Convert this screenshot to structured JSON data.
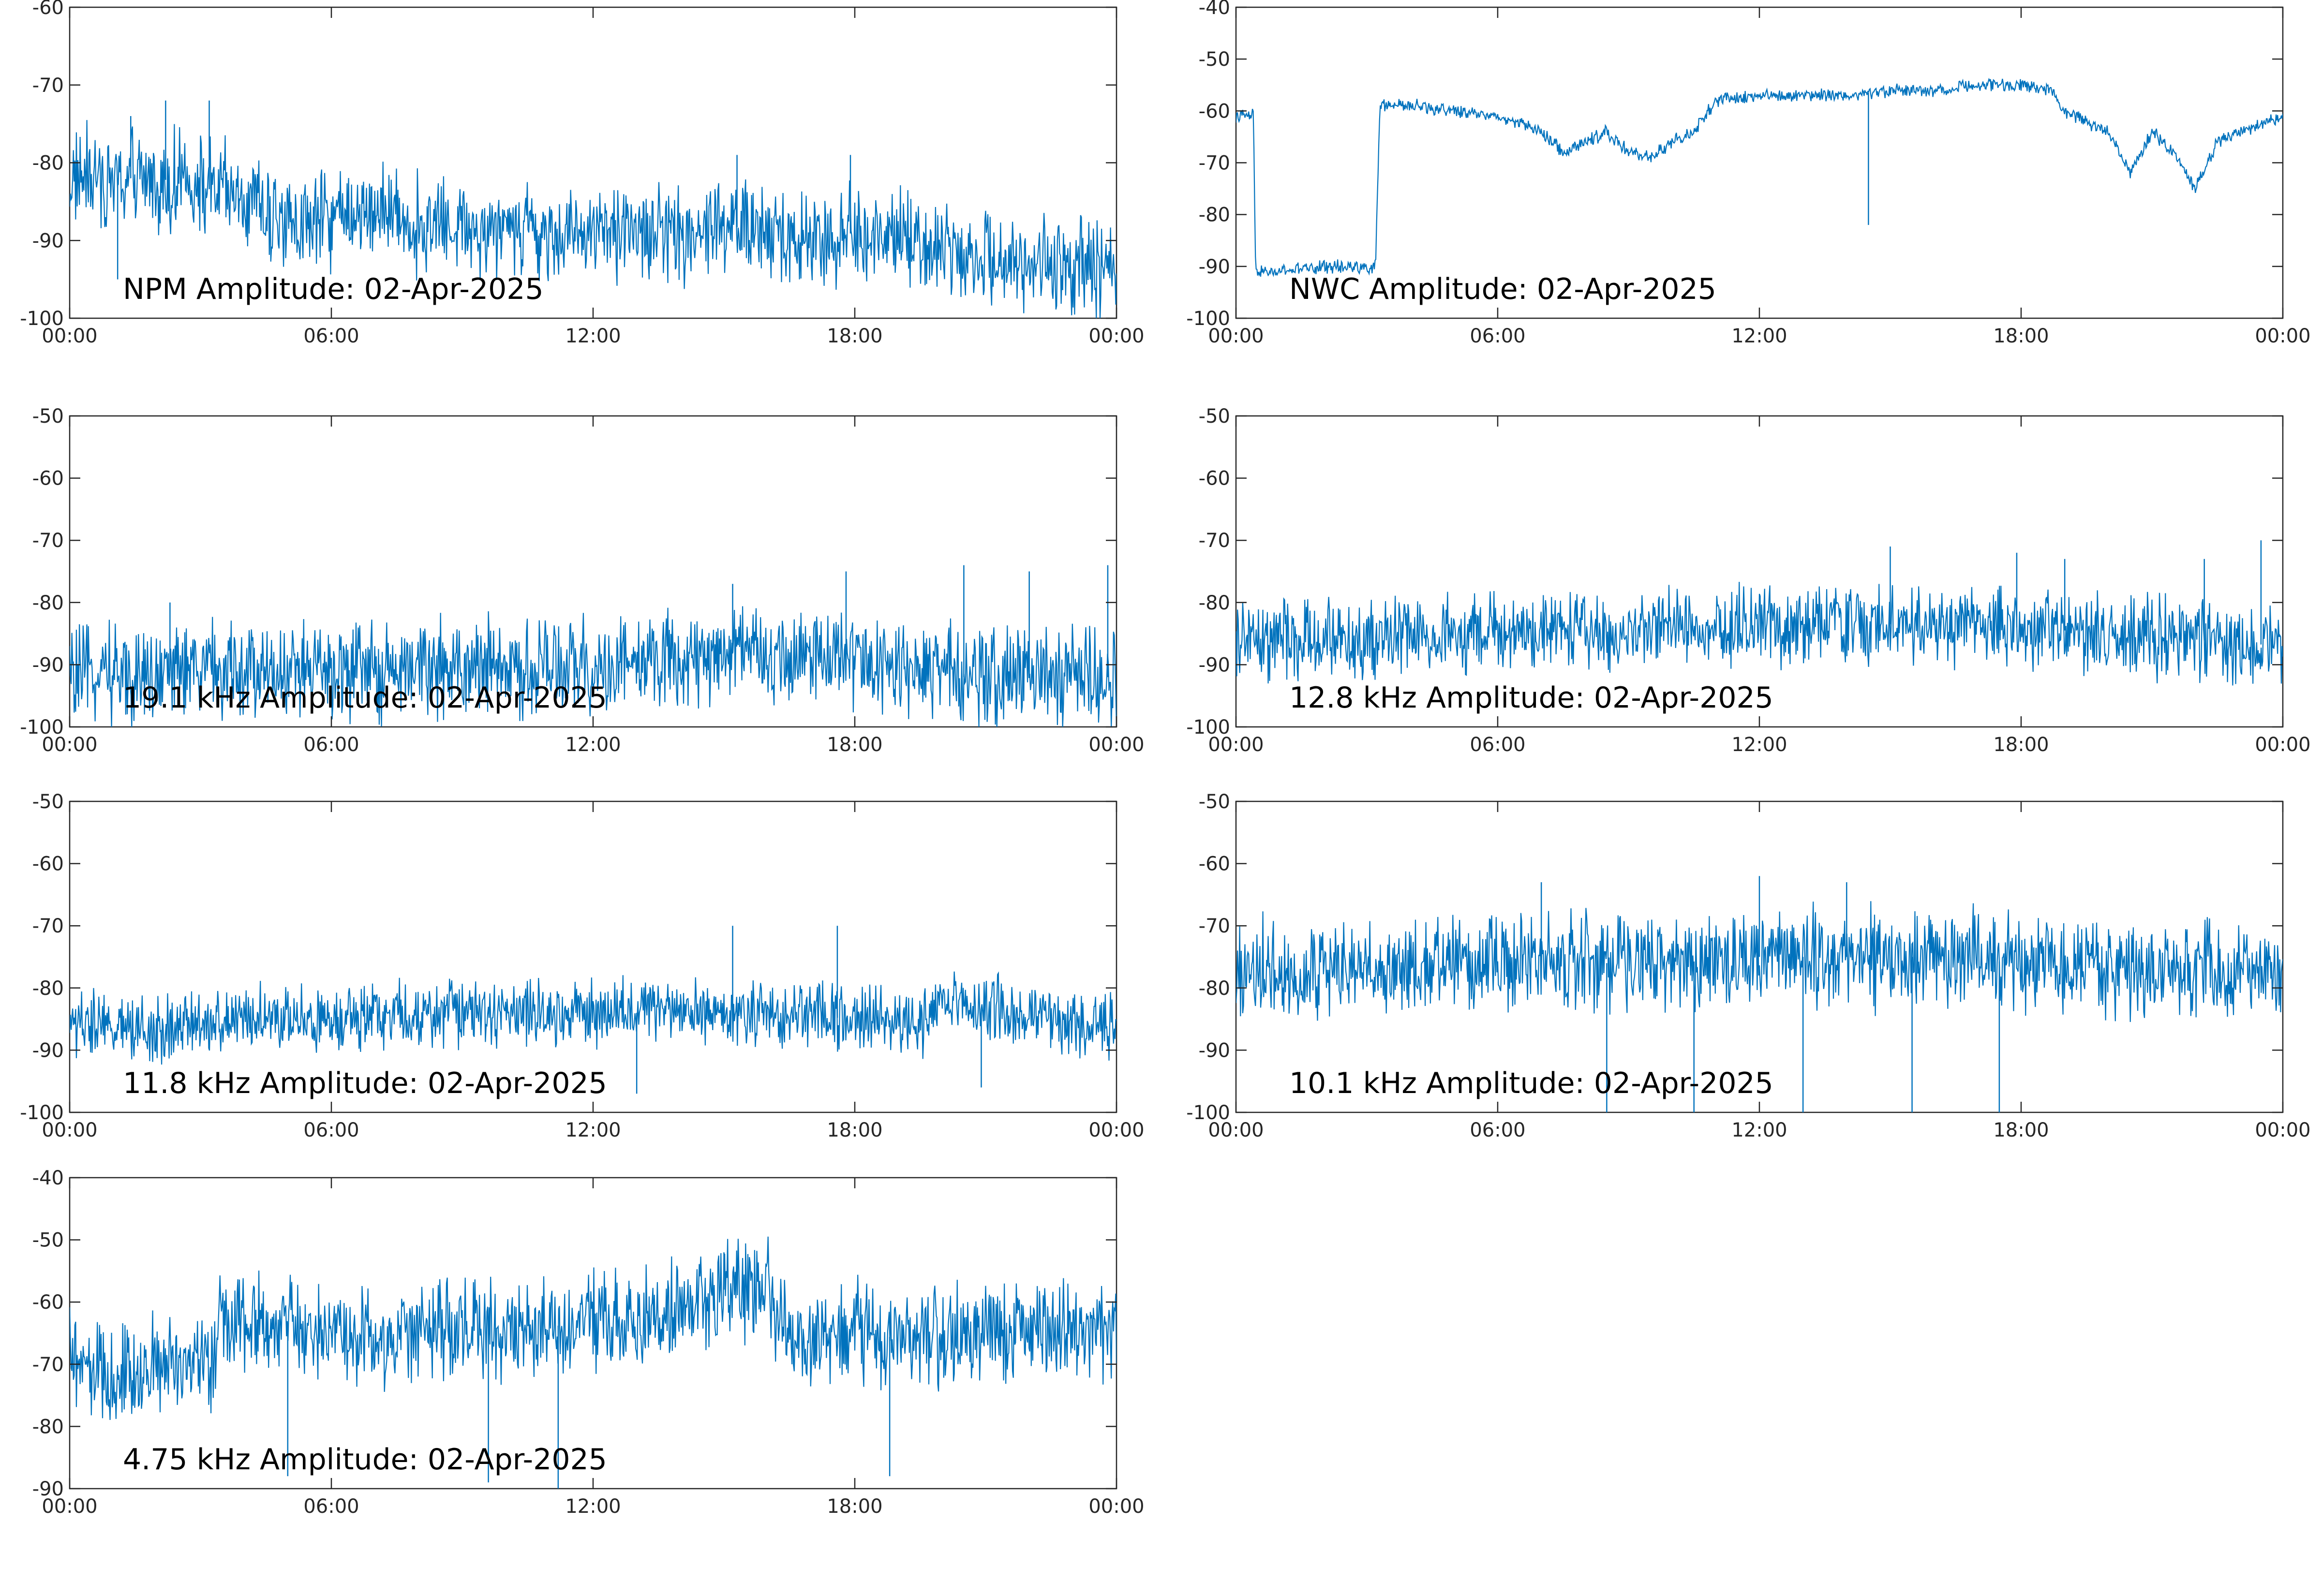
{
  "figure": {
    "background": "#ffffff",
    "line_color": "#0072BD"
  },
  "chart_data": [
    {
      "type": "line",
      "title": "NPM Amplitude: 02-Apr-2025",
      "xlabel": "",
      "ylabel": "",
      "xlim": [
        "00:00",
        "00:00"
      ],
      "ylim": [
        -100,
        -60
      ],
      "x_ticks": [
        "00:00",
        "06:00",
        "12:00",
        "18:00",
        "00:00"
      ],
      "y_ticks": [
        -60,
        -70,
        -80,
        -90,
        -100
      ],
      "grid": false,
      "series": [
        {
          "x_hours": [
            0,
            1,
            2,
            3,
            4,
            5,
            6,
            7,
            8,
            9,
            10,
            11,
            12,
            13,
            14,
            15,
            16,
            17,
            18,
            19,
            20,
            21,
            22,
            23,
            24
          ],
          "values": [
            -82,
            -82,
            -82,
            -83,
            -85,
            -88,
            -87,
            -86,
            -88,
            -88,
            -88,
            -89,
            -89,
            -89,
            -89,
            -88,
            -89,
            -90,
            -89,
            -90,
            -91,
            -92,
            -93,
            -93,
            -94
          ],
          "noise": 4,
          "spikes": [
            {
              "x_hours": 1.1,
              "value": -95
            },
            {
              "x_hours": 1.4,
              "value": -74
            },
            {
              "x_hours": 2.2,
              "value": -72
            },
            {
              "x_hours": 3.2,
              "value": -72
            },
            {
              "x_hours": 15.3,
              "value": -79
            },
            {
              "x_hours": 17.9,
              "value": -79
            }
          ]
        }
      ]
    },
    {
      "type": "line",
      "title": "NWC Amplitude: 02-Apr-2025",
      "xlabel": "",
      "ylabel": "",
      "xlim": [
        "00:00",
        "00:00"
      ],
      "ylim": [
        -100,
        -40
      ],
      "x_ticks": [
        "00:00",
        "06:00",
        "12:00",
        "18:00",
        "00:00"
      ],
      "y_ticks": [
        -40,
        -50,
        -60,
        -70,
        -80,
        -90,
        -100
      ],
      "grid": false,
      "series": [
        {
          "x_hours": [
            0,
            0.4,
            0.45,
            1,
            2,
            3,
            3.2,
            3.3,
            4,
            5,
            6,
            7,
            7.5,
            8,
            8.5,
            9,
            9.5,
            10,
            10.5,
            11,
            12,
            13,
            14,
            15,
            16,
            17,
            18,
            18.7,
            19,
            20,
            20.5,
            21,
            21.5,
            22,
            22.5,
            23,
            24
          ],
          "values": [
            -61,
            -61,
            -91,
            -91,
            -90,
            -90,
            -90,
            -59,
            -59,
            -60,
            -61,
            -64,
            -68,
            -66,
            -64,
            -68,
            -69,
            -66,
            -64,
            -58,
            -57,
            -57,
            -57,
            -56,
            -56,
            -55,
            -55,
            -56,
            -60,
            -64,
            -72,
            -64,
            -68,
            -75,
            -66,
            -64,
            -61
          ],
          "noise": 0.8,
          "spikes": [
            {
              "x_hours": 14.5,
              "value": -82
            }
          ]
        }
      ]
    },
    {
      "type": "line",
      "title": "19.1 kHz Amplitude: 02-Apr-2025",
      "xlabel": "",
      "ylabel": "",
      "xlim": [
        "00:00",
        "00:00"
      ],
      "ylim": [
        -100,
        -50
      ],
      "x_ticks": [
        "00:00",
        "06:00",
        "12:00",
        "18:00",
        "00:00"
      ],
      "y_ticks": [
        -50,
        -60,
        -70,
        -80,
        -90,
        -100
      ],
      "grid": false,
      "series": [
        {
          "x_hours": [
            0,
            2,
            4,
            6,
            8,
            10,
            12,
            14,
            15,
            16,
            17,
            18,
            19,
            20,
            22,
            24
          ],
          "values": [
            -92,
            -91,
            -91,
            -91,
            -91,
            -90,
            -90,
            -89,
            -88,
            -89,
            -88,
            -89,
            -90,
            -92,
            -92,
            -92
          ],
          "noise": 5,
          "spikes": [
            {
              "x_hours": 2.3,
              "value": -80
            },
            {
              "x_hours": 15.2,
              "value": -77
            },
            {
              "x_hours": 17.8,
              "value": -75
            },
            {
              "x_hours": 20.5,
              "value": -74
            },
            {
              "x_hours": 22.0,
              "value": -75
            },
            {
              "x_hours": 23.8,
              "value": -74
            }
          ]
        }
      ]
    },
    {
      "type": "line",
      "title": "12.8 kHz Amplitude: 02-Apr-2025",
      "xlabel": "",
      "ylabel": "",
      "xlim": [
        "00:00",
        "00:00"
      ],
      "ylim": [
        -100,
        -50
      ],
      "x_ticks": [
        "00:00",
        "06:00",
        "12:00",
        "18:00",
        "00:00"
      ],
      "y_ticks": [
        -50,
        -60,
        -70,
        -80,
        -90,
        -100
      ],
      "grid": false,
      "series": [
        {
          "x_hours": [
            0,
            2,
            4,
            6,
            8,
            10,
            12,
            14,
            16,
            18,
            20,
            22,
            24
          ],
          "values": [
            -86,
            -86,
            -85,
            -85,
            -85,
            -84,
            -84,
            -83,
            -84,
            -84,
            -85,
            -86,
            -87
          ],
          "noise": 4,
          "spikes": [
            {
              "x_hours": 15.0,
              "value": -71
            },
            {
              "x_hours": 17.9,
              "value": -72
            },
            {
              "x_hours": 19.0,
              "value": -73
            },
            {
              "x_hours": 22.2,
              "value": -73
            },
            {
              "x_hours": 23.5,
              "value": -70
            }
          ]
        }
      ]
    },
    {
      "type": "line",
      "title": "11.8 kHz Amplitude: 02-Apr-2025",
      "xlabel": "",
      "ylabel": "",
      "xlim": [
        "00:00",
        "00:00"
      ],
      "ylim": [
        -100,
        -50
      ],
      "x_ticks": [
        "00:00",
        "06:00",
        "12:00",
        "18:00",
        "00:00"
      ],
      "y_ticks": [
        -50,
        -60,
        -70,
        -80,
        -90,
        -100
      ],
      "grid": false,
      "series": [
        {
          "x_hours": [
            0,
            2,
            4,
            6,
            8,
            10,
            12,
            14,
            16,
            18,
            19.5,
            20,
            22,
            23,
            24
          ],
          "values": [
            -86,
            -86,
            -85,
            -85,
            -84,
            -84,
            -84,
            -84,
            -84,
            -85,
            -86,
            -83,
            -84,
            -86,
            -86
          ],
          "noise": 3.5,
          "spikes": [
            {
              "x_hours": 15.2,
              "value": -70
            },
            {
              "x_hours": 17.6,
              "value": -70
            },
            {
              "x_hours": 13.0,
              "value": -97
            },
            {
              "x_hours": 20.9,
              "value": -96
            }
          ]
        }
      ]
    },
    {
      "type": "line",
      "title": "10.1 kHz Amplitude: 02-Apr-2025",
      "xlabel": "",
      "ylabel": "",
      "xlim": [
        "00:00",
        "00:00"
      ],
      "ylim": [
        -100,
        -50
      ],
      "x_ticks": [
        "00:00",
        "06:00",
        "12:00",
        "18:00",
        "00:00"
      ],
      "y_ticks": [
        -50,
        -60,
        -70,
        -80,
        -90,
        -100
      ],
      "grid": false,
      "series": [
        {
          "x_hours": [
            0,
            2,
            4,
            6,
            8,
            10,
            12,
            14,
            16,
            18,
            20,
            22,
            24
          ],
          "values": [
            -77,
            -77,
            -77,
            -76,
            -76,
            -76,
            -75,
            -75,
            -75,
            -76,
            -77,
            -77,
            -78
          ],
          "noise": 5,
          "spikes": [
            {
              "x_hours": 7.0,
              "value": -63
            },
            {
              "x_hours": 12.0,
              "value": -62
            },
            {
              "x_hours": 14.0,
              "value": -63
            },
            {
              "x_hours": 8.5,
              "value": -100
            },
            {
              "x_hours": 10.5,
              "value": -100
            },
            {
              "x_hours": 13.0,
              "value": -100
            },
            {
              "x_hours": 15.5,
              "value": -100
            },
            {
              "x_hours": 17.5,
              "value": -100
            }
          ]
        }
      ]
    },
    {
      "type": "line",
      "title": "4.75 kHz Amplitude: 02-Apr-2025",
      "xlabel": "",
      "ylabel": "",
      "xlim": [
        "00:00",
        "00:00"
      ],
      "ylim": [
        -90,
        -40
      ],
      "x_ticks": [
        "00:00",
        "06:00",
        "12:00",
        "18:00",
        "00:00"
      ],
      "y_ticks": [
        -40,
        -50,
        -60,
        -70,
        -80,
        -90
      ],
      "grid": false,
      "series": [
        {
          "x_hours": [
            0,
            1,
            2,
            3,
            3.3,
            3.4,
            4,
            5,
            6,
            7,
            8,
            9,
            10,
            11,
            12,
            13,
            14,
            14.5,
            15,
            16,
            16.3,
            17,
            18,
            19,
            20,
            21,
            22,
            23,
            24
          ],
          "values": [
            -70,
            -72,
            -70,
            -70,
            -70,
            -63,
            -63,
            -64,
            -65,
            -66,
            -65,
            -64,
            -65,
            -64,
            -63,
            -63,
            -61,
            -59,
            -58,
            -58,
            -65,
            -66,
            -64,
            -66,
            -66,
            -65,
            -65,
            -64,
            -65
          ],
          "noise": 5,
          "spikes": [
            {
              "x_hours": 9.6,
              "value": -89
            },
            {
              "x_hours": 11.2,
              "value": -90
            },
            {
              "x_hours": 18.8,
              "value": -88
            },
            {
              "x_hours": 5.0,
              "value": -88
            },
            {
              "x_hours": 15.0,
              "value": -52
            }
          ]
        }
      ]
    }
  ]
}
